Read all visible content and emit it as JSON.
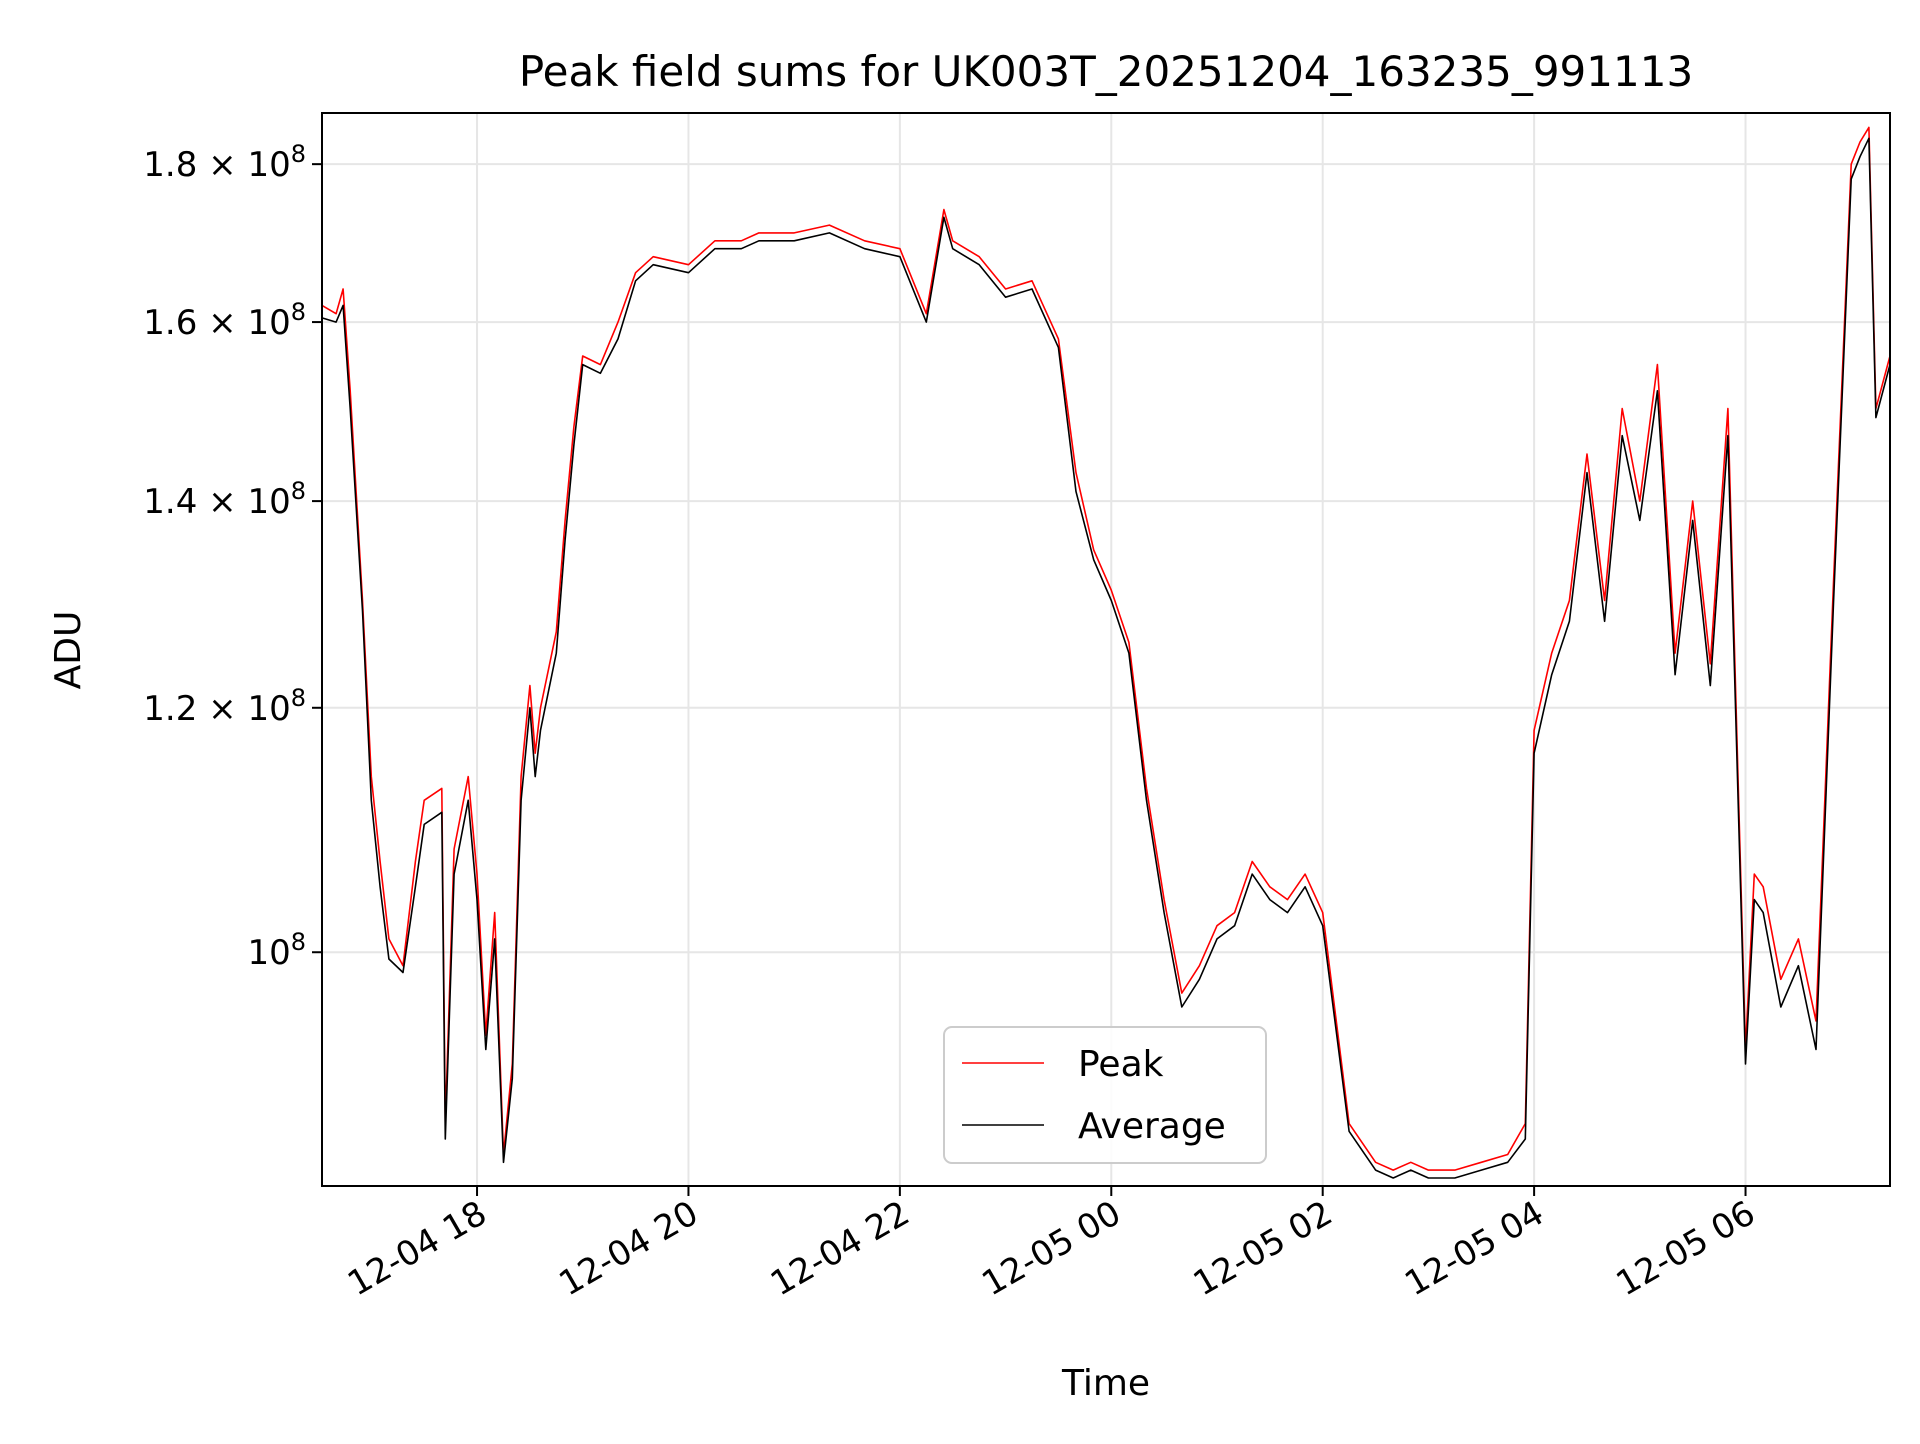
{
  "chart_data": {
    "type": "line",
    "title": "Peak field sums for UK003T_20251204_163235_991113",
    "xlabel": "Time",
    "ylabel": "ADU",
    "yscale": "log",
    "xlim": [
      "2025-12-04 16:32",
      "2025-12-05 07:22"
    ],
    "ylim": [
      84000000,
      187000000
    ],
    "grid": true,
    "legend_position": "lower-center",
    "x_ticks": [
      {
        "value": "2025-12-04 18:00",
        "label": "12-04 18"
      },
      {
        "value": "2025-12-04 20:00",
        "label": "12-04 20"
      },
      {
        "value": "2025-12-04 22:00",
        "label": "12-04 22"
      },
      {
        "value": "2025-12-05 00:00",
        "label": "12-05 00"
      },
      {
        "value": "2025-12-05 02:00",
        "label": "12-05 02"
      },
      {
        "value": "2025-12-05 04:00",
        "label": "12-05 04"
      },
      {
        "value": "2025-12-05 06:00",
        "label": "12-05 06"
      }
    ],
    "y_ticks": [
      {
        "value": 100000000,
        "mant": "",
        "exp": "8"
      },
      {
        "value": 120000000,
        "mant": "1.2",
        "exp": "8"
      },
      {
        "value": 140000000,
        "mant": "1.4",
        "exp": "8"
      },
      {
        "value": 160000000,
        "mant": "1.6",
        "exp": "8"
      },
      {
        "value": 180000000,
        "mant": "1.8",
        "exp": "8"
      }
    ],
    "series": [
      {
        "name": "Peak",
        "color": "#ff0000",
        "x": [
          "2025-12-04 16:32",
          "2025-12-04 16:40",
          "2025-12-04 16:44",
          "2025-12-04 16:48",
          "2025-12-04 16:55",
          "2025-12-04 17:00",
          "2025-12-04 17:05",
          "2025-12-04 17:10",
          "2025-12-04 17:18",
          "2025-12-04 17:25",
          "2025-12-04 17:30",
          "2025-12-04 17:40",
          "2025-12-04 17:42",
          "2025-12-04 17:47",
          "2025-12-04 17:55",
          "2025-12-04 18:00",
          "2025-12-04 18:05",
          "2025-12-04 18:10",
          "2025-12-04 18:15",
          "2025-12-04 18:20",
          "2025-12-04 18:25",
          "2025-12-04 18:30",
          "2025-12-04 18:33",
          "2025-12-04 18:36",
          "2025-12-04 18:45",
          "2025-12-04 18:50",
          "2025-12-04 18:55",
          "2025-12-04 19:00",
          "2025-12-04 19:10",
          "2025-12-04 19:20",
          "2025-12-04 19:30",
          "2025-12-04 19:40",
          "2025-12-04 20:00",
          "2025-12-04 20:15",
          "2025-12-04 20:30",
          "2025-12-04 20:40",
          "2025-12-04 21:00",
          "2025-12-04 21:20",
          "2025-12-04 21:40",
          "2025-12-04 22:00",
          "2025-12-04 22:15",
          "2025-12-04 22:25",
          "2025-12-04 22:30",
          "2025-12-04 22:45",
          "2025-12-04 23:00",
          "2025-12-04 23:15",
          "2025-12-04 23:30",
          "2025-12-04 23:40",
          "2025-12-04 23:50",
          "2025-12-05 00:00",
          "2025-12-05 00:10",
          "2025-12-05 00:20",
          "2025-12-05 00:30",
          "2025-12-05 00:40",
          "2025-12-05 00:50",
          "2025-12-05 01:00",
          "2025-12-05 01:10",
          "2025-12-05 01:20",
          "2025-12-05 01:30",
          "2025-12-05 01:40",
          "2025-12-05 01:50",
          "2025-12-05 02:00",
          "2025-12-05 02:15",
          "2025-12-05 02:30",
          "2025-12-05 02:40",
          "2025-12-05 02:50",
          "2025-12-05 03:00",
          "2025-12-05 03:15",
          "2025-12-05 03:30",
          "2025-12-05 03:45",
          "2025-12-05 03:55",
          "2025-12-05 04:00",
          "2025-12-05 04:10",
          "2025-12-05 04:20",
          "2025-12-05 04:30",
          "2025-12-05 04:40",
          "2025-12-05 04:50",
          "2025-12-05 05:00",
          "2025-12-05 05:10",
          "2025-12-05 05:20",
          "2025-12-05 05:30",
          "2025-12-05 05:40",
          "2025-12-05 05:50",
          "2025-12-05 06:00",
          "2025-12-05 06:05",
          "2025-12-05 06:10",
          "2025-12-05 06:20",
          "2025-12-05 06:30",
          "2025-12-05 06:40",
          "2025-12-05 06:50",
          "2025-12-05 07:00",
          "2025-12-05 07:05",
          "2025-12-05 07:10",
          "2025-12-05 07:14",
          "2025-12-05 07:22"
        ],
        "y": [
          162000000,
          161000000,
          164000000,
          152000000,
          130000000,
          114000000,
          107000000,
          101000000,
          99000000,
          107000000,
          112000000,
          113000000,
          88000000,
          108000000,
          114000000,
          106000000,
          94000000,
          103000000,
          86000000,
          92000000,
          114000000,
          122000000,
          116000000,
          120000000,
          127000000,
          138000000,
          148000000,
          156000000,
          155000000,
          160000000,
          166000000,
          168000000,
          167000000,
          170000000,
          170000000,
          171000000,
          171000000,
          172000000,
          170000000,
          169000000,
          161000000,
          174000000,
          170000000,
          168000000,
          164000000,
          165000000,
          158000000,
          143000000,
          135000000,
          131000000,
          126000000,
          113000000,
          104000000,
          97000000,
          99000000,
          102000000,
          103000000,
          107000000,
          105000000,
          104000000,
          106000000,
          103000000,
          88000000,
          85500000,
          85000000,
          85500000,
          85000000,
          85000000,
          85500000,
          86000000,
          88000000,
          118000000,
          125000000,
          130000000,
          145000000,
          130000000,
          150000000,
          140000000,
          155000000,
          125000000,
          140000000,
          124000000,
          150000000,
          93000000,
          106000000,
          105000000,
          98000000,
          101000000,
          95000000,
          132000000,
          180000000,
          183000000,
          185000000,
          150000000,
          156000000
        ]
      },
      {
        "name": "Average",
        "color": "#000000",
        "x": [
          "2025-12-04 16:32",
          "2025-12-04 16:40",
          "2025-12-04 16:44",
          "2025-12-04 16:48",
          "2025-12-04 16:55",
          "2025-12-04 17:00",
          "2025-12-04 17:05",
          "2025-12-04 17:10",
          "2025-12-04 17:18",
          "2025-12-04 17:25",
          "2025-12-04 17:30",
          "2025-12-04 17:40",
          "2025-12-04 17:42",
          "2025-12-04 17:47",
          "2025-12-04 17:55",
          "2025-12-04 18:00",
          "2025-12-04 18:05",
          "2025-12-04 18:10",
          "2025-12-04 18:15",
          "2025-12-04 18:20",
          "2025-12-04 18:25",
          "2025-12-04 18:30",
          "2025-12-04 18:33",
          "2025-12-04 18:36",
          "2025-12-04 18:45",
          "2025-12-04 18:50",
          "2025-12-04 18:55",
          "2025-12-04 19:00",
          "2025-12-04 19:10",
          "2025-12-04 19:20",
          "2025-12-04 19:30",
          "2025-12-04 19:40",
          "2025-12-04 20:00",
          "2025-12-04 20:15",
          "2025-12-04 20:30",
          "2025-12-04 20:40",
          "2025-12-04 21:00",
          "2025-12-04 21:20",
          "2025-12-04 21:40",
          "2025-12-04 22:00",
          "2025-12-04 22:15",
          "2025-12-04 22:25",
          "2025-12-04 22:30",
          "2025-12-04 22:45",
          "2025-12-04 23:00",
          "2025-12-04 23:15",
          "2025-12-04 23:30",
          "2025-12-04 23:40",
          "2025-12-04 23:50",
          "2025-12-05 00:00",
          "2025-12-05 00:10",
          "2025-12-05 00:20",
          "2025-12-05 00:30",
          "2025-12-05 00:40",
          "2025-12-05 00:50",
          "2025-12-05 01:00",
          "2025-12-05 01:10",
          "2025-12-05 01:20",
          "2025-12-05 01:30",
          "2025-12-05 01:40",
          "2025-12-05 01:50",
          "2025-12-05 02:00",
          "2025-12-05 02:15",
          "2025-12-05 02:30",
          "2025-12-05 02:40",
          "2025-12-05 02:50",
          "2025-12-05 03:00",
          "2025-12-05 03:15",
          "2025-12-05 03:30",
          "2025-12-05 03:45",
          "2025-12-05 03:55",
          "2025-12-05 04:00",
          "2025-12-05 04:10",
          "2025-12-05 04:20",
          "2025-12-05 04:30",
          "2025-12-05 04:40",
          "2025-12-05 04:50",
          "2025-12-05 05:00",
          "2025-12-05 05:10",
          "2025-12-05 05:20",
          "2025-12-05 05:30",
          "2025-12-05 05:40",
          "2025-12-05 05:50",
          "2025-12-05 06:00",
          "2025-12-05 06:05",
          "2025-12-05 06:10",
          "2025-12-05 06:20",
          "2025-12-05 06:30",
          "2025-12-05 06:40",
          "2025-12-05 06:50",
          "2025-12-05 07:00",
          "2025-12-05 07:05",
          "2025-12-05 07:10",
          "2025-12-05 07:14",
          "2025-12-05 07:22"
        ],
        "y": [
          160500000,
          160000000,
          162000000,
          150000000,
          129000000,
          112000000,
          105000000,
          99500000,
          98500000,
          105000000,
          110000000,
          111000000,
          87000000,
          106000000,
          112000000,
          104000000,
          93000000,
          101000000,
          85500000,
          91000000,
          112000000,
          120000000,
          114000000,
          118000000,
          125000000,
          136000000,
          146000000,
          155000000,
          154000000,
          158000000,
          165000000,
          167000000,
          166000000,
          169000000,
          169000000,
          170000000,
          170000000,
          171000000,
          169000000,
          168000000,
          160000000,
          173000000,
          169000000,
          167000000,
          163000000,
          164000000,
          157000000,
          141000000,
          134000000,
          130000000,
          125000000,
          112000000,
          103000000,
          96000000,
          98000000,
          101000000,
          102000000,
          106000000,
          104000000,
          103000000,
          105000000,
          102000000,
          87500000,
          85000000,
          84500000,
          85000000,
          84500000,
          84500000,
          85000000,
          85500000,
          87000000,
          116000000,
          123000000,
          128000000,
          143000000,
          128000000,
          147000000,
          138000000,
          152000000,
          123000000,
          138000000,
          122000000,
          147000000,
          92000000,
          104000000,
          103000000,
          96000000,
          99000000,
          93000000,
          130000000,
          178000000,
          181000000,
          183500000,
          149000000,
          155000000
        ]
      }
    ]
  }
}
